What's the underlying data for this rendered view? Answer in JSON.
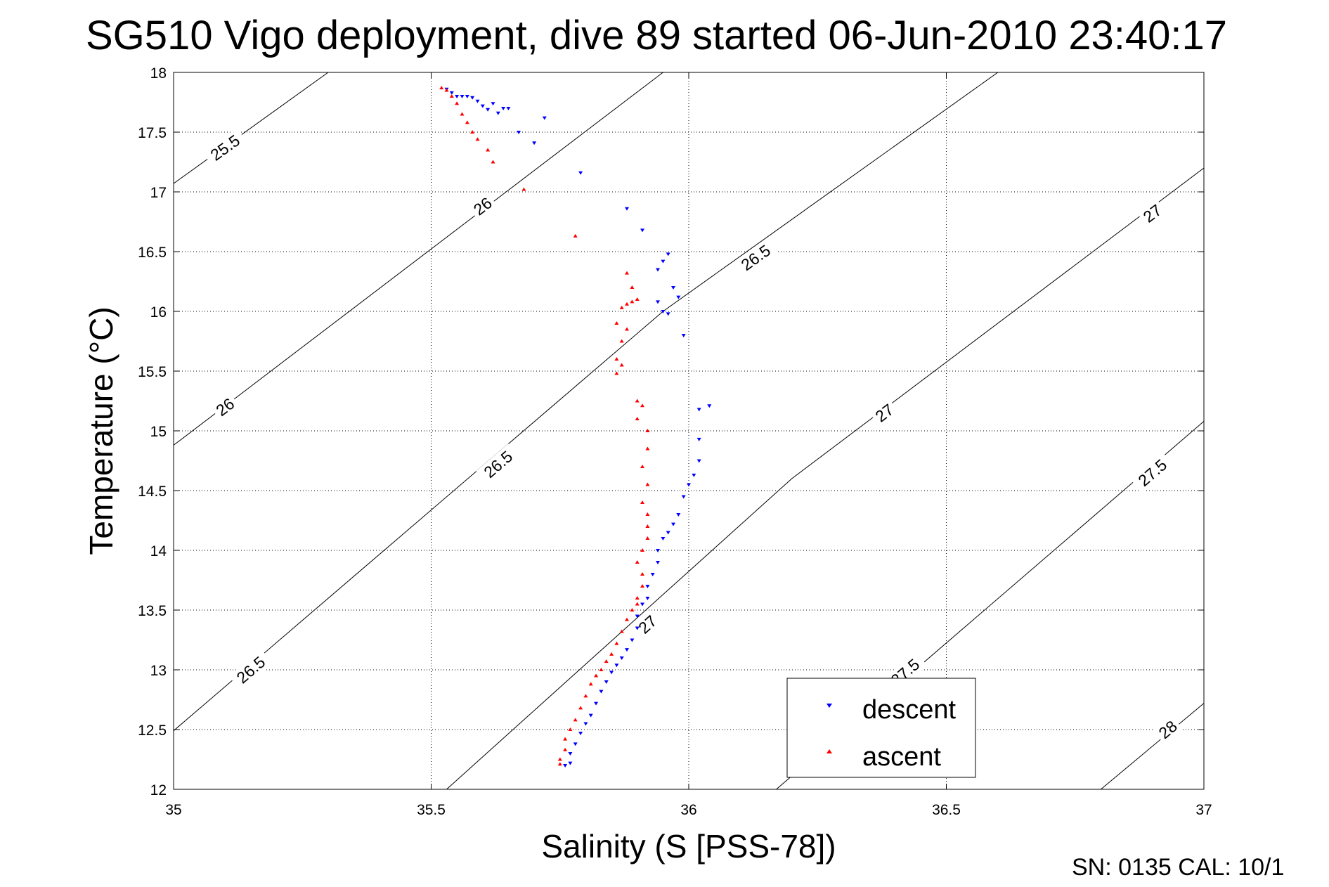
{
  "chart_data": {
    "type": "scatter",
    "title": "SG510 Vigo deployment, dive 89 started 06-Jun-2010 23:40:17",
    "xlabel": "Salinity (S [PSS-78])",
    "ylabel": "Temperature (°C)",
    "xlim": [
      35,
      37
    ],
    "ylim": [
      12,
      18
    ],
    "grid": true,
    "x_ticks": [
      "35",
      "35.5",
      "36",
      "36.5",
      "37"
    ],
    "y_ticks": [
      "12",
      "12.5",
      "13",
      "13.5",
      "14",
      "14.5",
      "15",
      "15.5",
      "16",
      "16.5",
      "17",
      "17.5",
      "18"
    ],
    "legend_position": "bottom-right",
    "footer": "SN: 0135  CAL: 10/1",
    "density_contours": [
      {
        "line": [
          [
            35.0,
            17.07
          ],
          [
            35.3,
            18.0
          ]
        ],
        "labels": [
          {
            "text": "25.5",
            "at": [
              35.1,
              17.37
            ]
          }
        ]
      },
      {
        "line": [
          [
            35.0,
            14.88
          ],
          [
            35.95,
            18.0
          ]
        ],
        "labels": [
          {
            "text": "26",
            "at": [
              35.1,
              15.2
            ]
          },
          {
            "text": "26",
            "at": [
              35.6,
              16.88
            ]
          }
        ]
      },
      {
        "line": [
          [
            35.0,
            12.49
          ],
          [
            35.95,
            16.0
          ],
          [
            36.6,
            18.0
          ]
        ],
        "labels": [
          {
            "text": "26.5",
            "at": [
              35.15,
              13.0
            ]
          },
          {
            "text": "26.5",
            "at": [
              35.63,
              14.72
            ]
          },
          {
            "text": "26.5",
            "at": [
              36.13,
              16.45
            ]
          }
        ]
      },
      {
        "line": [
          [
            35.53,
            12.0
          ],
          [
            36.2,
            14.6
          ],
          [
            37.0,
            17.2
          ]
        ],
        "labels": [
          {
            "text": "27",
            "at": [
              35.92,
              13.38
            ]
          },
          {
            "text": "27",
            "at": [
              36.38,
              15.15
            ]
          },
          {
            "text": "27",
            "at": [
              36.9,
              16.82
            ]
          }
        ]
      },
      {
        "line": [
          [
            36.17,
            12.0
          ],
          [
            37.0,
            15.08
          ]
        ],
        "labels": [
          {
            "text": "27.5",
            "at": [
              36.42,
              12.98
            ]
          },
          {
            "text": "27.5",
            "at": [
              36.9,
              14.65
            ]
          }
        ]
      },
      {
        "line": [
          [
            36.8,
            12.0
          ],
          [
            37.0,
            12.72
          ]
        ],
        "labels": [
          {
            "text": "28",
            "at": [
              36.93,
              12.5
            ]
          }
        ]
      }
    ],
    "series": [
      {
        "name": "descent",
        "color": "#0000ff",
        "marker": "triangle-down",
        "points": [
          [
            35.53,
            17.86
          ],
          [
            35.54,
            17.83
          ],
          [
            35.55,
            17.8
          ],
          [
            35.56,
            17.8
          ],
          [
            35.57,
            17.8
          ],
          [
            35.58,
            17.79
          ],
          [
            35.59,
            17.76
          ],
          [
            35.6,
            17.72
          ],
          [
            35.61,
            17.69
          ],
          [
            35.62,
            17.74
          ],
          [
            35.63,
            17.66
          ],
          [
            35.64,
            17.7
          ],
          [
            35.65,
            17.7
          ],
          [
            35.67,
            17.5
          ],
          [
            35.7,
            17.41
          ],
          [
            35.72,
            17.62
          ],
          [
            35.79,
            17.16
          ],
          [
            35.88,
            16.86
          ],
          [
            35.91,
            16.68
          ],
          [
            35.94,
            16.35
          ],
          [
            35.95,
            16.42
          ],
          [
            35.96,
            16.48
          ],
          [
            35.97,
            16.2
          ],
          [
            35.98,
            16.12
          ],
          [
            35.95,
            16.0
          ],
          [
            35.94,
            16.08
          ],
          [
            35.96,
            15.98
          ],
          [
            35.99,
            15.8
          ],
          [
            36.02,
            15.18
          ],
          [
            36.04,
            15.21
          ],
          [
            36.02,
            14.93
          ],
          [
            36.02,
            14.75
          ],
          [
            36.01,
            14.63
          ],
          [
            36.0,
            14.55
          ],
          [
            35.99,
            14.45
          ],
          [
            35.98,
            14.3
          ],
          [
            35.97,
            14.22
          ],
          [
            35.96,
            14.15
          ],
          [
            35.95,
            14.1
          ],
          [
            35.94,
            14.0
          ],
          [
            35.94,
            13.9
          ],
          [
            35.93,
            13.8
          ],
          [
            35.92,
            13.7
          ],
          [
            35.92,
            13.6
          ],
          [
            35.91,
            13.55
          ],
          [
            35.9,
            13.45
          ],
          [
            35.9,
            13.35
          ],
          [
            35.89,
            13.25
          ],
          [
            35.88,
            13.17
          ],
          [
            35.87,
            13.1
          ],
          [
            35.86,
            13.04
          ],
          [
            35.85,
            12.98
          ],
          [
            35.84,
            12.9
          ],
          [
            35.83,
            12.82
          ],
          [
            35.82,
            12.72
          ],
          [
            35.81,
            12.62
          ],
          [
            35.8,
            12.55
          ],
          [
            35.79,
            12.47
          ],
          [
            35.78,
            12.38
          ],
          [
            35.77,
            12.3
          ],
          [
            35.77,
            12.22
          ],
          [
            35.76,
            12.2
          ]
        ]
      },
      {
        "name": "ascent",
        "color": "#ff0000",
        "marker": "triangle-up",
        "points": [
          [
            35.52,
            17.87
          ],
          [
            35.53,
            17.85
          ],
          [
            35.54,
            17.8
          ],
          [
            35.55,
            17.74
          ],
          [
            35.56,
            17.65
          ],
          [
            35.57,
            17.58
          ],
          [
            35.58,
            17.5
          ],
          [
            35.59,
            17.44
          ],
          [
            35.61,
            17.35
          ],
          [
            35.62,
            17.25
          ],
          [
            35.68,
            17.02
          ],
          [
            35.78,
            16.63
          ],
          [
            35.88,
            16.32
          ],
          [
            35.89,
            16.2
          ],
          [
            35.9,
            16.1
          ],
          [
            35.89,
            16.08
          ],
          [
            35.88,
            16.06
          ],
          [
            35.87,
            16.03
          ],
          [
            35.86,
            15.9
          ],
          [
            35.88,
            15.85
          ],
          [
            35.87,
            15.75
          ],
          [
            35.86,
            15.6
          ],
          [
            35.87,
            15.55
          ],
          [
            35.86,
            15.48
          ],
          [
            35.9,
            15.25
          ],
          [
            35.91,
            15.21
          ],
          [
            35.9,
            15.1
          ],
          [
            35.92,
            15.0
          ],
          [
            35.92,
            14.85
          ],
          [
            35.91,
            14.7
          ],
          [
            35.92,
            14.55
          ],
          [
            35.91,
            14.4
          ],
          [
            35.92,
            14.3
          ],
          [
            35.92,
            14.2
          ],
          [
            35.92,
            14.1
          ],
          [
            35.91,
            14.0
          ],
          [
            35.9,
            13.9
          ],
          [
            35.91,
            13.8
          ],
          [
            35.91,
            13.7
          ],
          [
            35.9,
            13.6
          ],
          [
            35.9,
            13.55
          ],
          [
            35.89,
            13.5
          ],
          [
            35.88,
            13.42
          ],
          [
            35.87,
            13.32
          ],
          [
            35.86,
            13.22
          ],
          [
            35.85,
            13.13
          ],
          [
            35.84,
            13.07
          ],
          [
            35.83,
            13.0
          ],
          [
            35.82,
            12.95
          ],
          [
            35.81,
            12.88
          ],
          [
            35.8,
            12.78
          ],
          [
            35.79,
            12.68
          ],
          [
            35.78,
            12.58
          ],
          [
            35.77,
            12.5
          ],
          [
            35.76,
            12.42
          ],
          [
            35.76,
            12.33
          ],
          [
            35.75,
            12.25
          ],
          [
            35.75,
            12.21
          ]
        ]
      }
    ]
  }
}
